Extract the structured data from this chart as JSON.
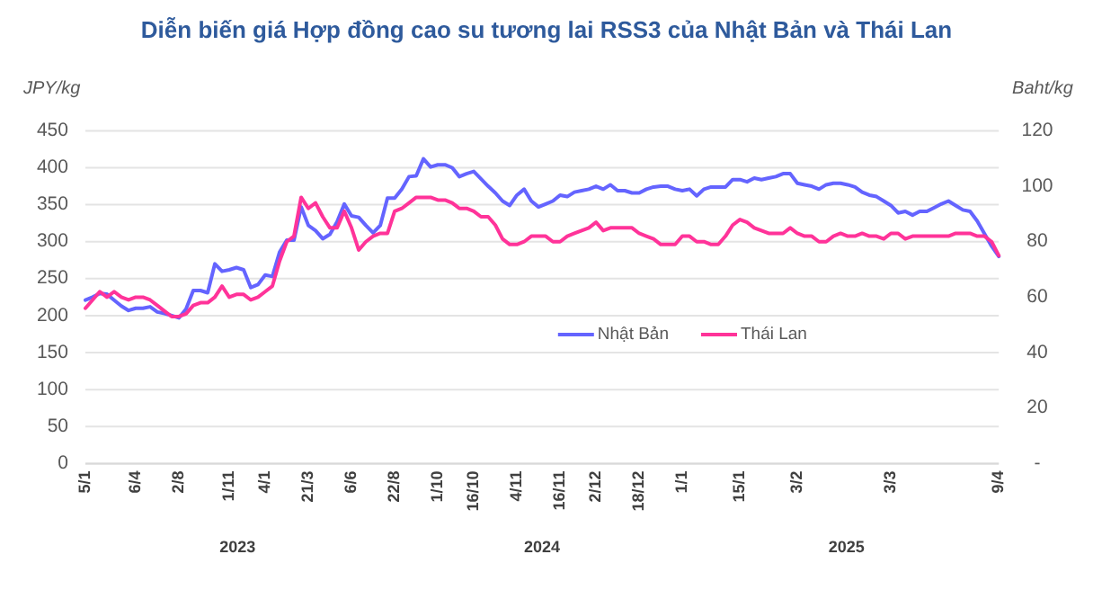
{
  "chart_data": {
    "type": "line",
    "title": "Diễn biến giá Hợp đồng cao su tương lai RSS3 của Nhật Bản và Thái Lan",
    "ylabel": "JPY/kg",
    "y2label": "Baht/kg",
    "categories": [
      "5/1",
      null,
      null,
      null,
      null,
      null,
      null,
      "6/4",
      null,
      null,
      null,
      null,
      null,
      "2/8",
      null,
      null,
      null,
      null,
      null,
      null,
      "1/11",
      null,
      null,
      null,
      null,
      "4/1",
      null,
      null,
      null,
      null,
      null,
      "21/3",
      null,
      null,
      null,
      null,
      null,
      "6/6",
      null,
      null,
      null,
      null,
      null,
      "22/8",
      null,
      null,
      null,
      null,
      null,
      "1/10",
      null,
      null,
      null,
      null,
      "16/10",
      null,
      null,
      null,
      null,
      null,
      "4/11",
      null,
      null,
      null,
      null,
      null,
      "16/11",
      null,
      null,
      null,
      null,
      "2/12",
      null,
      null,
      null,
      null,
      null,
      "18/12",
      null,
      null,
      null,
      null,
      null,
      "1/1",
      null,
      null,
      null,
      null,
      null,
      null,
      null,
      "15/1",
      null,
      null,
      null,
      null,
      null,
      null,
      null,
      "3/2",
      null,
      null,
      null,
      null,
      null,
      null,
      null,
      null,
      null,
      null,
      null,
      null,
      "3/3",
      null,
      null,
      null,
      null,
      null,
      null,
      null,
      null,
      null,
      null,
      null,
      null,
      null,
      null,
      "9/4"
    ],
    "series": [
      {
        "name": "Nhật Bản",
        "color": "#6464ff",
        "values": [
          221,
          225,
          230,
          229,
          221,
          213,
          207,
          210,
          210,
          212,
          205,
          203,
          200,
          197,
          209,
          234,
          234,
          231,
          270,
          260,
          262,
          265,
          262,
          238,
          242,
          255,
          253,
          286,
          302,
          302,
          347,
          322,
          315,
          304,
          310,
          327,
          351,
          335,
          333,
          322,
          312,
          322,
          359,
          359,
          371,
          388,
          389,
          412,
          401,
          404,
          404,
          400,
          388,
          392,
          395,
          385,
          375,
          366,
          355,
          349,
          363,
          371,
          355,
          347,
          351,
          355,
          363,
          361,
          367,
          369,
          371,
          375,
          371,
          377,
          369,
          369,
          366,
          366,
          371,
          374,
          375,
          375,
          371,
          369,
          371,
          362,
          371,
          374,
          374,
          374,
          384,
          384,
          381,
          386,
          384,
          386,
          388,
          392,
          392,
          379,
          377,
          375,
          371,
          377,
          379,
          379,
          377,
          374,
          367,
          363,
          361,
          355,
          349,
          339,
          341,
          336,
          341,
          341,
          346,
          351,
          355,
          349,
          343,
          341,
          328,
          311,
          294,
          280
        ]
      },
      {
        "name": "Thái Lan",
        "color": "#ff3399",
        "axis": "y2",
        "values": [
          56,
          59,
          62,
          60,
          62,
          60,
          59,
          60,
          60,
          59,
          57,
          55,
          53,
          53,
          54,
          57,
          58,
          58,
          60,
          64,
          60,
          61,
          61,
          59,
          60,
          62,
          64,
          73,
          80,
          82,
          96,
          92,
          94,
          89,
          85,
          85,
          91,
          85,
          77,
          80,
          82,
          83,
          83,
          91,
          92,
          94,
          96,
          96,
          96,
          95,
          95,
          94,
          92,
          92,
          91,
          89,
          89,
          86,
          81,
          79,
          79,
          80,
          82,
          82,
          82,
          80,
          80,
          82,
          83,
          84,
          85,
          87,
          84,
          85,
          85,
          85,
          85,
          83,
          82,
          81,
          79,
          79,
          79,
          82,
          82,
          80,
          80,
          79,
          79,
          82,
          86,
          88,
          87,
          85,
          84,
          83,
          83,
          83,
          85,
          83,
          82,
          82,
          80,
          80,
          82,
          83,
          82,
          82,
          83,
          82,
          82,
          81,
          83,
          83,
          81,
          82,
          82,
          82,
          82,
          82,
          82,
          83,
          83,
          83,
          82,
          82,
          80,
          75
        ]
      }
    ],
    "ylim": [
      0,
      450
    ],
    "yticks": [
      0,
      50,
      100,
      150,
      200,
      250,
      300,
      350,
      400,
      450
    ],
    "y2lim": [
      0,
      120
    ],
    "y2ticks": [
      {
        "value": 0,
        "label": "-"
      },
      20,
      40,
      60,
      80,
      100,
      120
    ],
    "grid": "y",
    "legend": "right",
    "annotations": [
      "2023",
      "2024",
      "2025"
    ]
  }
}
